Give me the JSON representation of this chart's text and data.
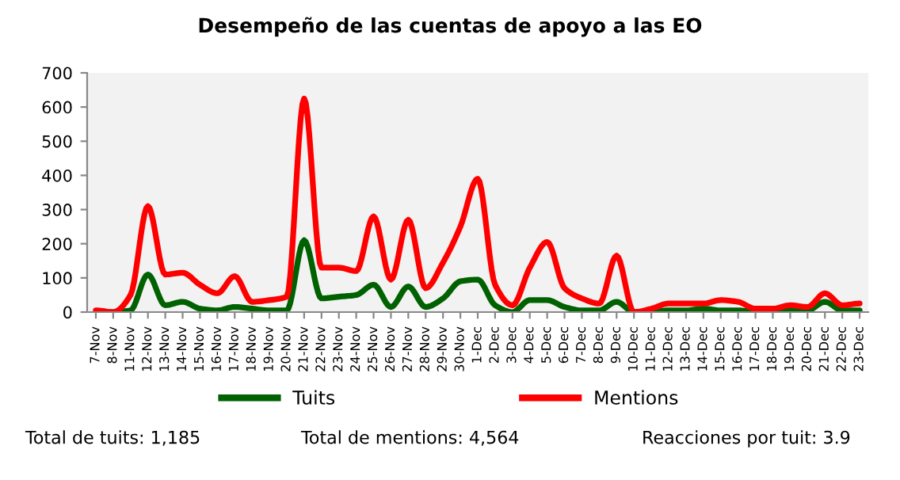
{
  "chart_data": {
    "type": "line",
    "title": "Desempeño de las cuentas de apoyo a las EO",
    "categories": [
      "7-Nov",
      "8-Nov",
      "11-Nov",
      "12-Nov",
      "13-Nov",
      "14-Nov",
      "15-Nov",
      "16-Nov",
      "17-Nov",
      "18-Nov",
      "19-Nov",
      "20-Nov",
      "21-Nov",
      "22-Nov",
      "23-Nov",
      "24-Nov",
      "25-Nov",
      "26-Nov",
      "27-Nov",
      "28-Nov",
      "29-Nov",
      "30-Nov",
      "1-Dec",
      "2-Dec",
      "3-Dec",
      "4-Dec",
      "5-Dec",
      "6-Dec",
      "7-Dec",
      "8-Dec",
      "9-Dec",
      "10-Dec",
      "11-Dec",
      "12-Dec",
      "13-Dec",
      "14-Dec",
      "15-Dec",
      "16-Dec",
      "17-Dec",
      "18-Dec",
      "19-Dec",
      "20-Dec",
      "21-Dec",
      "22-Dec",
      "23-Dec"
    ],
    "series": [
      {
        "name": "Tuits",
        "color": "#006100",
        "values": [
          0,
          0,
          5,
          110,
          20,
          30,
          10,
          5,
          15,
          10,
          5,
          5,
          210,
          40,
          45,
          50,
          80,
          15,
          75,
          15,
          40,
          90,
          95,
          20,
          0,
          35,
          35,
          15,
          5,
          5,
          30,
          0,
          0,
          5,
          5,
          10,
          5,
          5,
          0,
          0,
          5,
          5,
          30,
          5,
          5
        ]
      },
      {
        "name": "Mentions",
        "color": "#ff0000",
        "values": [
          5,
          0,
          50,
          310,
          110,
          115,
          80,
          55,
          105,
          30,
          35,
          45,
          625,
          130,
          130,
          120,
          280,
          95,
          270,
          70,
          145,
          250,
          390,
          80,
          20,
          130,
          205,
          70,
          40,
          25,
          165,
          0,
          10,
          25,
          25,
          25,
          35,
          30,
          10,
          10,
          20,
          15,
          55,
          20,
          25
        ]
      }
    ],
    "ylim": [
      0,
      700
    ],
    "yticks": [
      0,
      100,
      200,
      300,
      400,
      500,
      600,
      700
    ],
    "grid": false,
    "legend": "bottom",
    "marker": "none",
    "line_style": "solid",
    "annotations": [
      "Total de tuits: 1,185",
      "Total de mentions: 4,564",
      "Reacciones por tuit: 3.9"
    ]
  }
}
